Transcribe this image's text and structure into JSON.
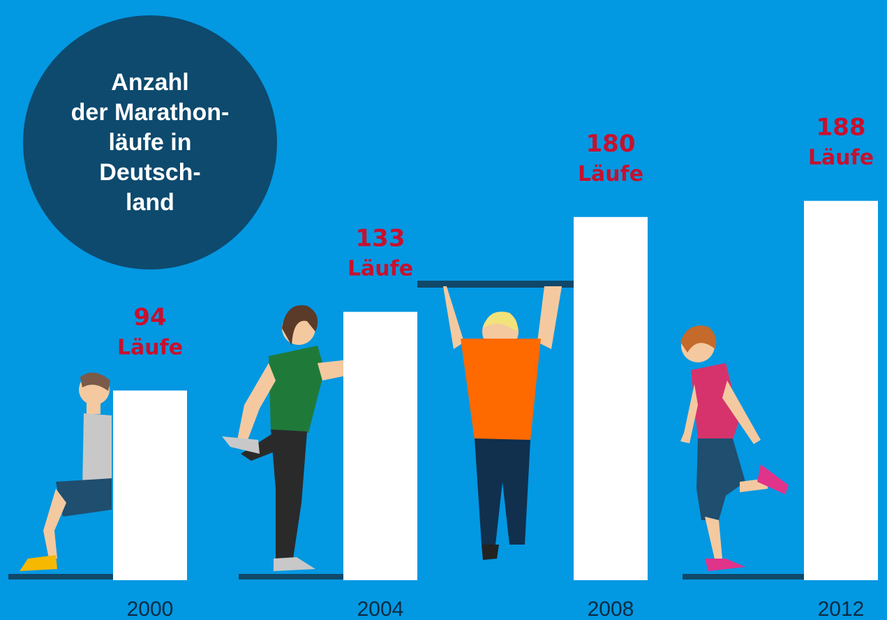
{
  "chart_data": {
    "type": "bar",
    "title_lines": [
      "Anzahl",
      "der Marathon-",
      "läufe in",
      "Deutsch-",
      "land"
    ],
    "categories": [
      "2000",
      "2004",
      "2008",
      "2012"
    ],
    "values": [
      94,
      133,
      180,
      188
    ],
    "value_labels": [
      "94 Läufe",
      "133 Läufe",
      "180 Läufe",
      "188 Läufe"
    ],
    "color": "#ffffff"
  }
}
